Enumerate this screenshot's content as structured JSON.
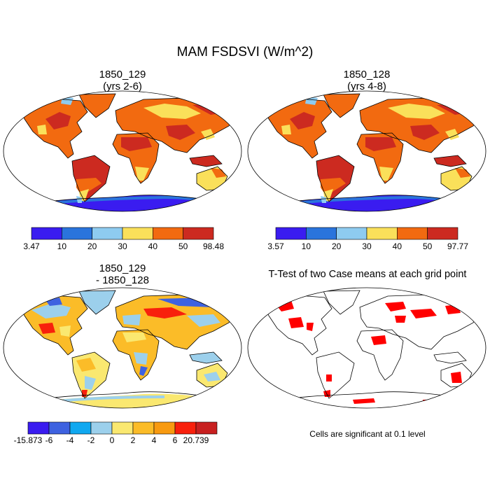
{
  "figure": {
    "title": "MAM FSDSVI (W/m^2)",
    "panels": [
      {
        "id": "case1",
        "title_line1": "1850_129",
        "title_line2": "(yrs 2-6)",
        "colorbar": {
          "min_label": "3.47",
          "max_label": "98.48",
          "ticks": [
            "10",
            "20",
            "30",
            "40",
            "50"
          ],
          "colors": [
            "#3a1cf0",
            "#2a74dc",
            "#8ecbf0",
            "#fae05a",
            "#f26a10",
            "#cc2a20"
          ]
        }
      },
      {
        "id": "case2",
        "title_line1": "1850_128",
        "title_line2": "(yrs 4-8)",
        "colorbar": {
          "min_label": "3.57",
          "max_label": "97.77",
          "ticks": [
            "10",
            "20",
            "30",
            "40",
            "50"
          ],
          "colors": [
            "#3a1cf0",
            "#2a74dc",
            "#8ecbf0",
            "#fae05a",
            "#f26a10",
            "#cc2a20"
          ]
        }
      },
      {
        "id": "diff",
        "title_line1": "1850_129",
        "title_line2": "- 1850_128",
        "colorbar": {
          "min_label": "-15.873",
          "max_label": "20.739",
          "ticks": [
            "-6",
            "-4",
            "-2",
            "0",
            "2",
            "4",
            "6"
          ],
          "colors": [
            "#3a1cf0",
            "#3e62e0",
            "#10a8f0",
            "#9cd0ec",
            "#fae870",
            "#fbbc28",
            "#f89a10",
            "#f8200c",
            "#c82020"
          ]
        }
      },
      {
        "id": "ttest",
        "title_line1": "T-Test of two Case means at each grid point",
        "note": "Cells are significant at 0.1 level",
        "significance_color": "#ff0000"
      }
    ]
  }
}
